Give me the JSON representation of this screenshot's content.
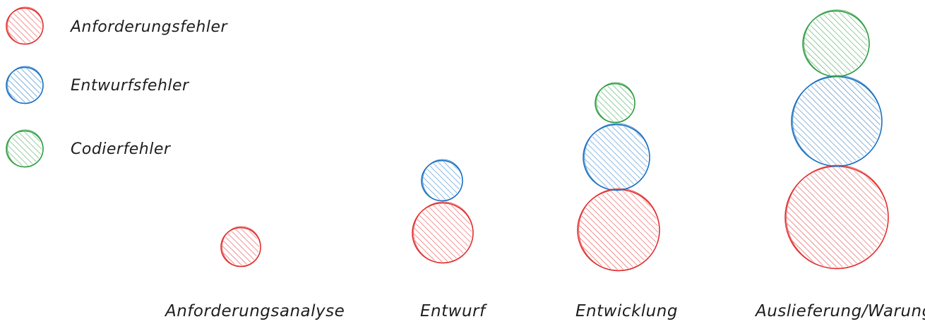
{
  "legend": [
    {
      "key": "anforderung",
      "label": "Anforderungsfehler",
      "color": "#e03131"
    },
    {
      "key": "entwurf",
      "label": "Entwurfsfehler",
      "color": "#1971c2"
    },
    {
      "key": "codier",
      "label": "Codierfehler",
      "color": "#2f9e44"
    }
  ],
  "phases": [
    {
      "label": "Anforderungsanalyse"
    },
    {
      "label": "Entwurf"
    },
    {
      "label": "Entwicklung"
    },
    {
      "label": "Auslieferung/Warung"
    }
  ]
}
